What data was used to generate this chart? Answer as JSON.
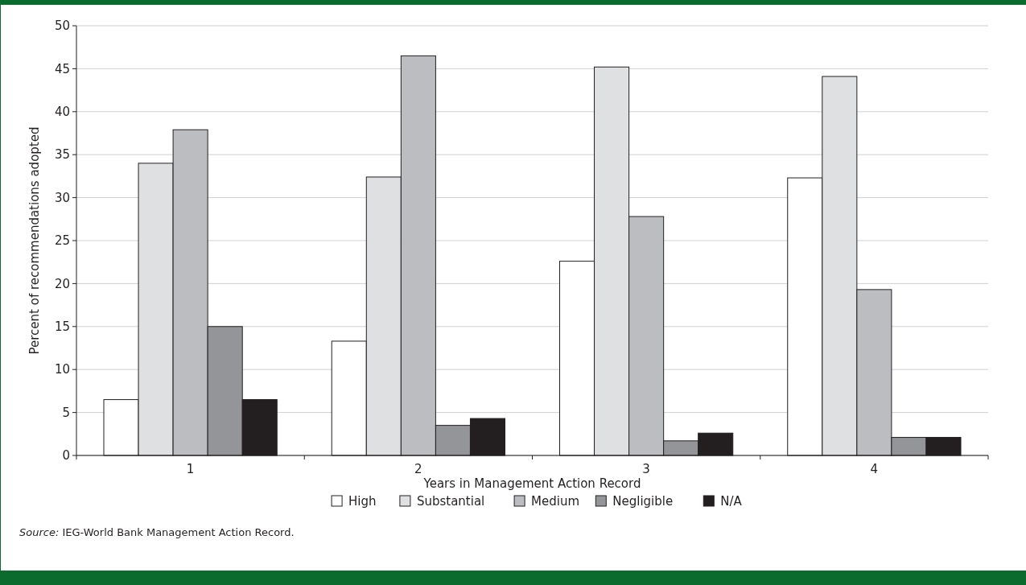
{
  "chart_data": {
    "type": "bar",
    "xlabel": "Years in Management Action Record",
    "ylabel": "Percent of recommendations adopted",
    "categories": [
      "1",
      "2",
      "3",
      "4"
    ],
    "series": [
      {
        "name": "High",
        "color": "#ffffff",
        "values": [
          6.5,
          13.3,
          22.6,
          32.3
        ]
      },
      {
        "name": "Substantial",
        "color": "#dfe0e2",
        "values": [
          34,
          32.4,
          45.2,
          44.1
        ]
      },
      {
        "name": "Medium",
        "color": "#bcbdc1",
        "values": [
          37.9,
          46.5,
          27.8,
          19.3
        ]
      },
      {
        "name": "Negligible",
        "color": "#939598",
        "values": [
          15,
          3.5,
          1.7,
          2.1
        ]
      },
      {
        "name": "N/A",
        "color": "#231f20",
        "values": [
          6.5,
          4.3,
          2.6,
          2.1
        ]
      }
    ],
    "ylim": [
      0,
      50
    ],
    "yticks": [
      0,
      5,
      10,
      15,
      20,
      25,
      30,
      35,
      40,
      45,
      50
    ],
    "grid": "y",
    "legend": "bottom",
    "annotations": [
      "Source: IEG-World Bank Management Action Record."
    ]
  }
}
